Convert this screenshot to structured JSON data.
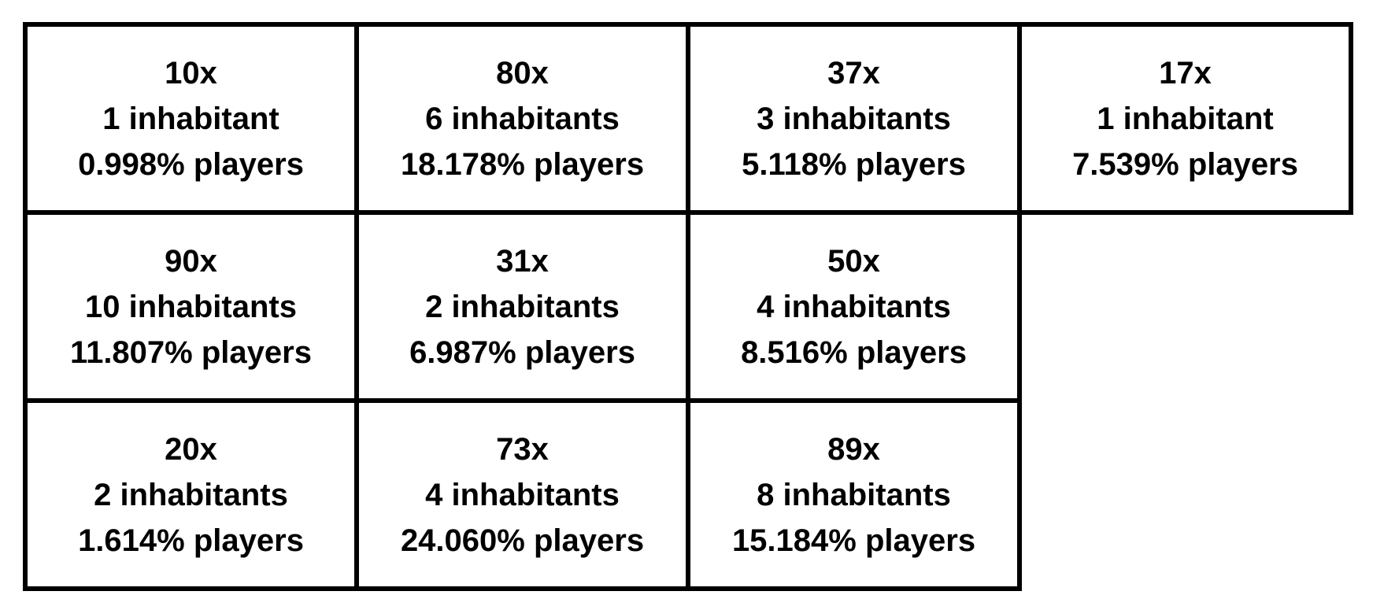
{
  "cells": [
    {
      "multiplier": "10x",
      "inhabitants": "1 inhabitant",
      "players": "0.998% players"
    },
    {
      "multiplier": "80x",
      "inhabitants": "6 inhabitants",
      "players": "18.178% players"
    },
    {
      "multiplier": "37x",
      "inhabitants": "3 inhabitants",
      "players": "5.118% players"
    },
    {
      "multiplier": "17x",
      "inhabitants": "1 inhabitant",
      "players": "7.539% players"
    },
    {
      "multiplier": "90x",
      "inhabitants": "10 inhabitants",
      "players": "11.807% players"
    },
    {
      "multiplier": "31x",
      "inhabitants": "2 inhabitants",
      "players": "6.987% players"
    },
    {
      "multiplier": "50x",
      "inhabitants": "4 inhabitants",
      "players": "8.516% players"
    },
    {
      "multiplier": "20x",
      "inhabitants": "2 inhabitants",
      "players": "1.614% players"
    },
    {
      "multiplier": "73x",
      "inhabitants": "4 inhabitants",
      "players": "24.060% players"
    },
    {
      "multiplier": "89x",
      "inhabitants": "8 inhabitants",
      "players": "15.184% players"
    }
  ]
}
